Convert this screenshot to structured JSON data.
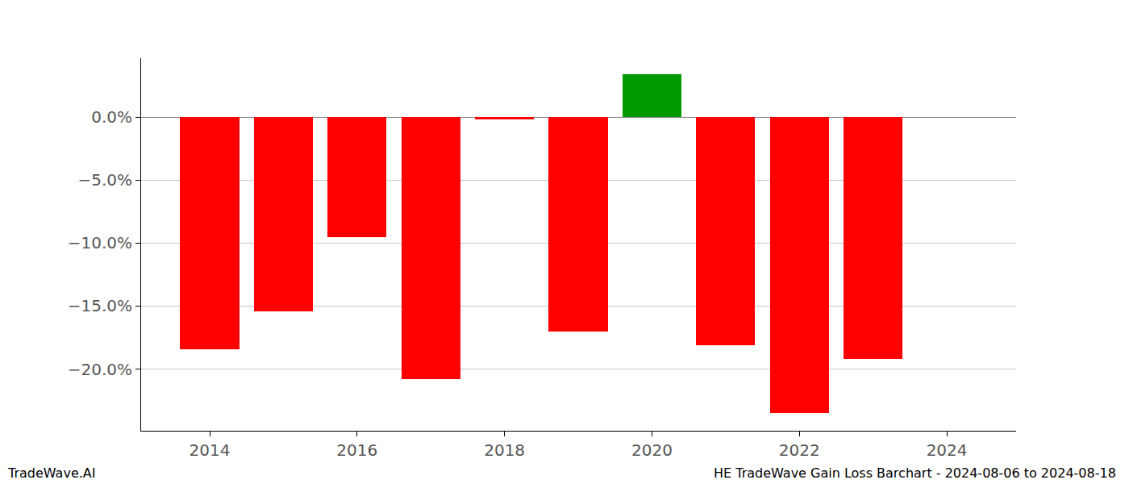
{
  "chart_data": {
    "type": "bar",
    "x": [
      2014,
      2015,
      2016,
      2017,
      2018,
      2019,
      2020,
      2021,
      2022,
      2023
    ],
    "values": [
      -18.4,
      -15.4,
      -9.55,
      -20.8,
      -0.2,
      -17.05,
      3.4,
      -18.1,
      -23.5,
      -19.2
    ],
    "colors": [
      "#ff0000",
      "#ff0000",
      "#ff0000",
      "#ff0000",
      "#ff0000",
      "#ff0000",
      "#009900",
      "#ff0000",
      "#ff0000",
      "#ff0000"
    ],
    "xlim": [
      2013.07,
      2024.94
    ],
    "xticks": [
      2014,
      2016,
      2018,
      2020,
      2022,
      2024
    ],
    "ylim": [
      -24.9,
      4.7
    ],
    "yticks": [
      {
        "value": 0,
        "label": "0.0%"
      },
      {
        "value": -5,
        "label": "−5.0%"
      },
      {
        "value": -10,
        "label": "−10.0%"
      },
      {
        "value": -15,
        "label": "−15.0%"
      },
      {
        "value": -20,
        "label": "−20.0%"
      }
    ],
    "grid": true,
    "annotations": [
      "TradeWave.AI",
      "HE TradeWave Gain Loss Barchart - 2024-08-06 to 2024-08-18"
    ]
  }
}
